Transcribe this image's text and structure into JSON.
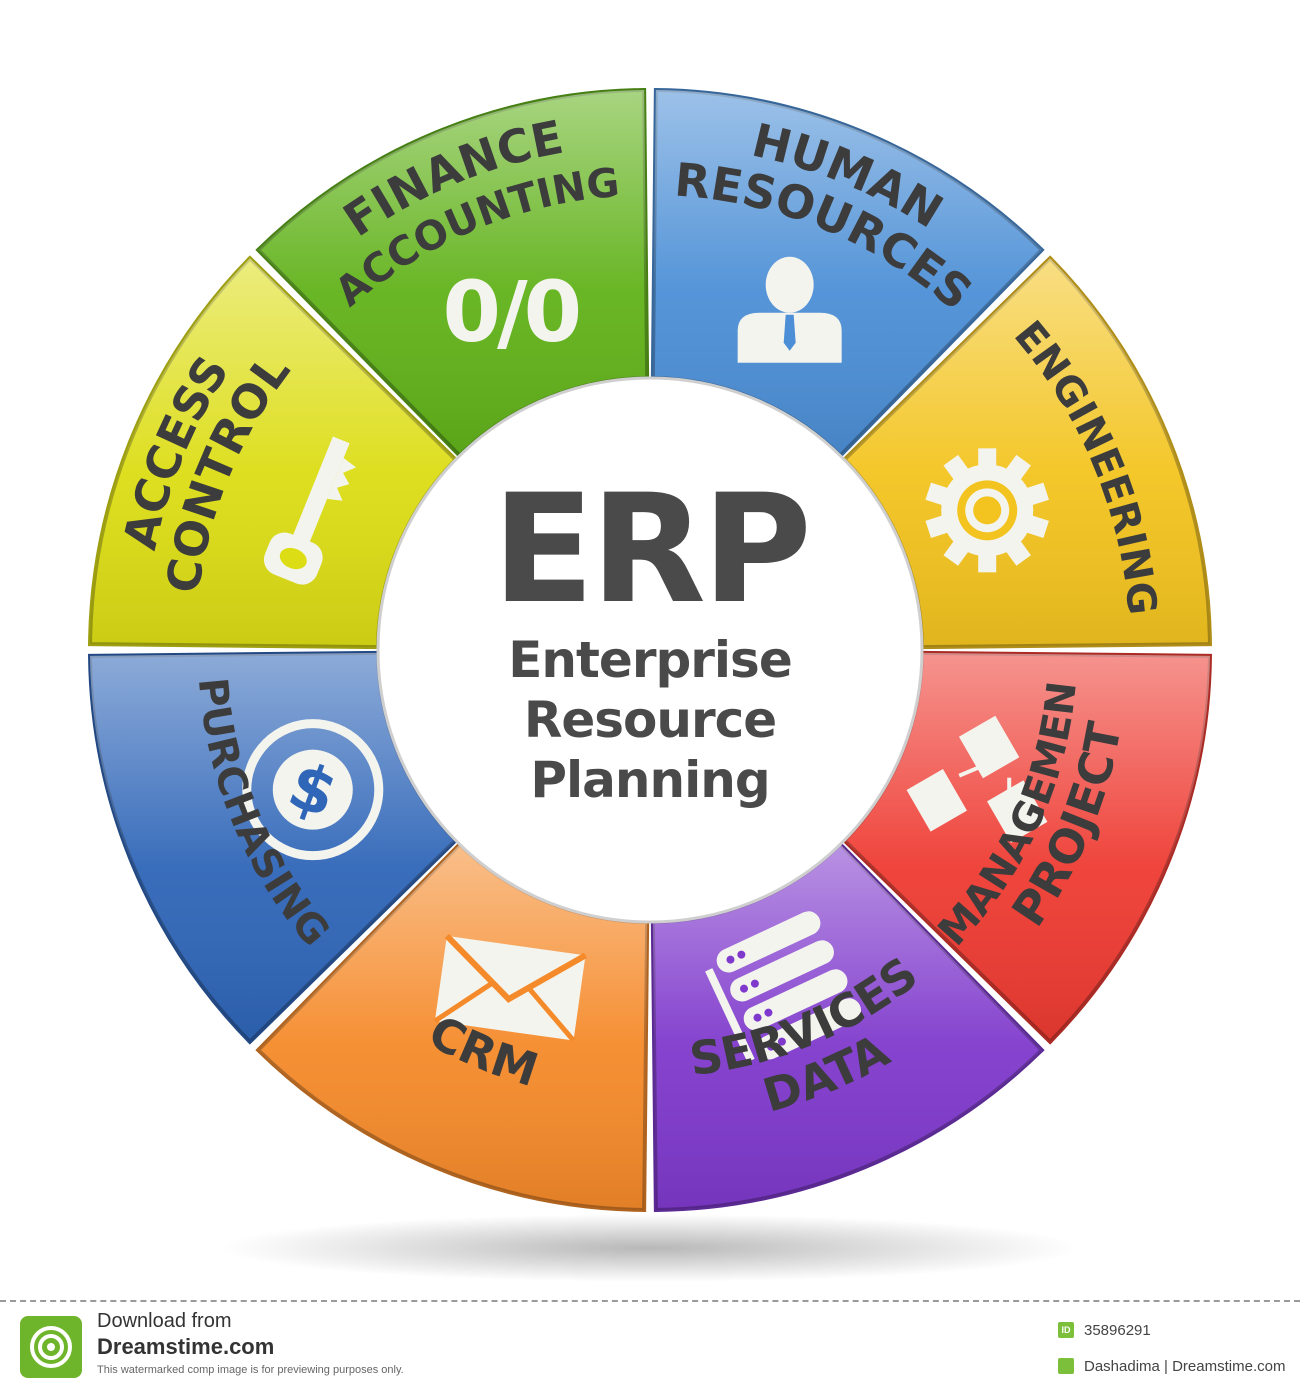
{
  "center": {
    "title": "ERP",
    "subtitle_lines": [
      "Enterprise",
      "Resource",
      "Planning"
    ]
  },
  "segments": [
    {
      "lines": [
        "HUMAN",
        "RESOURCES"
      ],
      "icon": "person-icon",
      "color": "#4c8fd6"
    },
    {
      "lines": [
        "ENGINEERING"
      ],
      "icon": "gear-icon",
      "color": "#f3c41f"
    },
    {
      "lines": [
        "PROJECT",
        "MANAGEMENT"
      ],
      "icon": "flowchart-icon",
      "color": "#ee3b32"
    },
    {
      "lines": [
        "DATA",
        "SERVICES"
      ],
      "icon": "server-icon",
      "color": "#7f39cc"
    },
    {
      "lines": [
        "CRM"
      ],
      "icon": "envelope-icon",
      "color": "#f58a2a"
    },
    {
      "lines": [
        "PURCHASING"
      ],
      "icon": "dollar-coin-icon",
      "color": "#2f66b8"
    },
    {
      "lines": [
        "ACCESS",
        "CONTROL"
      ],
      "icon": "key-icon",
      "color": "#dcdd15"
    },
    {
      "lines": [
        "FINANCE",
        "ACCOUNTING"
      ],
      "icon": "percent-icon",
      "color": "#61b21a",
      "icon_text": "0/0"
    }
  ],
  "footer": {
    "download_line1": "Download from",
    "download_line2": "Dreamstime.com",
    "note": "This watermarked comp image is for previewing purposes only.",
    "id_badge": "ID",
    "image_id": "35896291",
    "credit": "Dashadima | Dreamstime.com"
  }
}
